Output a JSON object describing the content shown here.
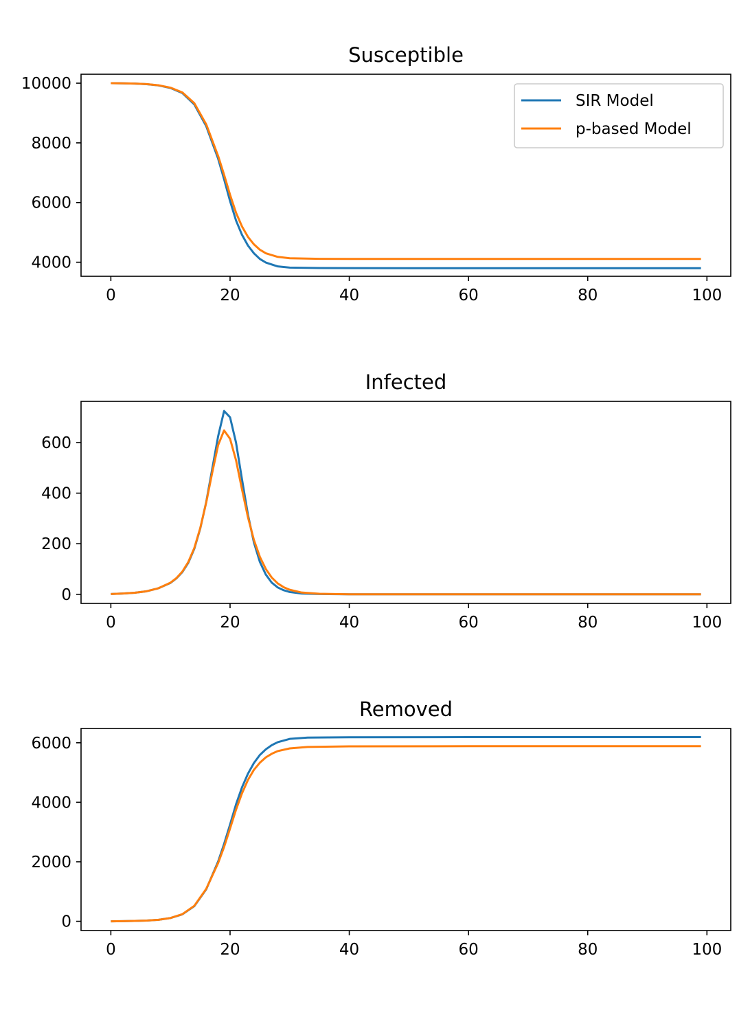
{
  "chart_data": [
    {
      "type": "line",
      "title": "Susceptible",
      "xlim": [
        -5,
        104
      ],
      "ylim": [
        3530,
        10300
      ],
      "xticks": [
        0,
        20,
        40,
        60,
        80,
        100
      ],
      "yticks": [
        4000,
        6000,
        8000,
        10000
      ],
      "legend": {
        "placement": "upper-right"
      },
      "grid": false,
      "series": [
        {
          "name": "SIR Model",
          "color": "#1f77b4",
          "points": [
            [
              0,
              10000
            ],
            [
              2,
              9995
            ],
            [
              4,
              9985
            ],
            [
              6,
              9965
            ],
            [
              8,
              9925
            ],
            [
              10,
              9840
            ],
            [
              12,
              9670
            ],
            [
              14,
              9290
            ],
            [
              16,
              8560
            ],
            [
              18,
              7470
            ],
            [
              19,
              6780
            ],
            [
              20,
              6050
            ],
            [
              21,
              5400
            ],
            [
              22,
              4920
            ],
            [
              23,
              4560
            ],
            [
              24,
              4300
            ],
            [
              25,
              4110
            ],
            [
              26,
              3990
            ],
            [
              28,
              3860
            ],
            [
              30,
              3820
            ],
            [
              35,
              3805
            ],
            [
              40,
              3803
            ],
            [
              50,
              3802
            ],
            [
              70,
              3802
            ],
            [
              99,
              3802
            ]
          ]
        },
        {
          "name": "p-based Model",
          "color": "#ff7f0e",
          "points": [
            [
              0,
              10000
            ],
            [
              2,
              9995
            ],
            [
              4,
              9987
            ],
            [
              6,
              9968
            ],
            [
              8,
              9930
            ],
            [
              10,
              9850
            ],
            [
              12,
              9690
            ],
            [
              14,
              9330
            ],
            [
              16,
              8620
            ],
            [
              18,
              7560
            ],
            [
              19,
              6930
            ],
            [
              20,
              6260
            ],
            [
              21,
              5660
            ],
            [
              22,
              5200
            ],
            [
              23,
              4850
            ],
            [
              24,
              4600
            ],
            [
              25,
              4420
            ],
            [
              26,
              4300
            ],
            [
              28,
              4180
            ],
            [
              30,
              4135
            ],
            [
              35,
              4115
            ],
            [
              40,
              4110
            ],
            [
              50,
              4110
            ],
            [
              70,
              4110
            ],
            [
              99,
              4110
            ]
          ]
        }
      ]
    },
    {
      "type": "line",
      "title": "Infected",
      "xlim": [
        -5,
        104
      ],
      "ylim": [
        -36,
        763
      ],
      "xticks": [
        0,
        20,
        40,
        60,
        80,
        100
      ],
      "yticks": [
        0,
        200,
        400,
        600
      ],
      "grid": false,
      "series": [
        {
          "name": "SIR Model",
          "color": "#1f77b4",
          "points": [
            [
              0,
              1
            ],
            [
              2,
              3
            ],
            [
              4,
              6
            ],
            [
              6,
              12
            ],
            [
              8,
              24
            ],
            [
              10,
              45
            ],
            [
              11,
              63
            ],
            [
              12,
              88
            ],
            [
              13,
              125
            ],
            [
              14,
              180
            ],
            [
              15,
              260
            ],
            [
              16,
              365
            ],
            [
              17,
              495
            ],
            [
              18,
              625
            ],
            [
              19,
              725
            ],
            [
              20,
              700
            ],
            [
              21,
              600
            ],
            [
              22,
              455
            ],
            [
              23,
              315
            ],
            [
              24,
              205
            ],
            [
              25,
              128
            ],
            [
              26,
              78
            ],
            [
              27,
              46
            ],
            [
              28,
              27
            ],
            [
              29,
              16
            ],
            [
              30,
              9
            ],
            [
              32,
              3
            ],
            [
              35,
              1
            ],
            [
              40,
              0
            ],
            [
              99,
              0
            ]
          ]
        },
        {
          "name": "p-based Model",
          "color": "#ff7f0e",
          "points": [
            [
              0,
              1
            ],
            [
              2,
              3
            ],
            [
              4,
              6
            ],
            [
              6,
              12
            ],
            [
              8,
              24
            ],
            [
              10,
              46
            ],
            [
              11,
              64
            ],
            [
              12,
              90
            ],
            [
              13,
              128
            ],
            [
              14,
              183
            ],
            [
              15,
              262
            ],
            [
              16,
              363
            ],
            [
              17,
              480
            ],
            [
              18,
              590
            ],
            [
              19,
              648
            ],
            [
              20,
              615
            ],
            [
              21,
              530
            ],
            [
              22,
              415
            ],
            [
              23,
              305
            ],
            [
              24,
              215
            ],
            [
              25,
              148
            ],
            [
              26,
              100
            ],
            [
              27,
              66
            ],
            [
              28,
              43
            ],
            [
              29,
              28
            ],
            [
              30,
              18
            ],
            [
              32,
              7
            ],
            [
              35,
              2
            ],
            [
              40,
              0
            ],
            [
              99,
              0
            ]
          ]
        }
      ]
    },
    {
      "type": "line",
      "title": "Removed",
      "xlim": [
        -5,
        104
      ],
      "ylim": [
        -310,
        6480
      ],
      "xticks": [
        0,
        20,
        40,
        60,
        80,
        100
      ],
      "yticks": [
        0,
        2000,
        4000,
        6000
      ],
      "grid": false,
      "series": [
        {
          "name": "SIR Model",
          "color": "#1f77b4",
          "points": [
            [
              0,
              0
            ],
            [
              2,
              5
            ],
            [
              4,
              12
            ],
            [
              6,
              25
            ],
            [
              8,
              50
            ],
            [
              10,
              110
            ],
            [
              12,
              235
            ],
            [
              14,
              510
            ],
            [
              16,
              1075
            ],
            [
              18,
              2010
            ],
            [
              19,
              2600
            ],
            [
              20,
              3250
            ],
            [
              21,
              3930
            ],
            [
              22,
              4500
            ],
            [
              23,
              4960
            ],
            [
              24,
              5320
            ],
            [
              25,
              5590
            ],
            [
              26,
              5780
            ],
            [
              27,
              5920
            ],
            [
              28,
              6020
            ],
            [
              30,
              6130
            ],
            [
              33,
              6175
            ],
            [
              40,
              6185
            ],
            [
              60,
              6190
            ],
            [
              99,
              6190
            ]
          ]
        },
        {
          "name": "p-based Model",
          "color": "#ff7f0e",
          "points": [
            [
              0,
              0
            ],
            [
              2,
              5
            ],
            [
              4,
              12
            ],
            [
              6,
              25
            ],
            [
              8,
              50
            ],
            [
              10,
              110
            ],
            [
              12,
              240
            ],
            [
              14,
              520
            ],
            [
              16,
              1090
            ],
            [
              18,
              1960
            ],
            [
              19,
              2500
            ],
            [
              20,
              3120
            ],
            [
              21,
              3750
            ],
            [
              22,
              4300
            ],
            [
              23,
              4750
            ],
            [
              24,
              5090
            ],
            [
              25,
              5330
            ],
            [
              26,
              5510
            ],
            [
              27,
              5630
            ],
            [
              28,
              5720
            ],
            [
              30,
              5810
            ],
            [
              33,
              5860
            ],
            [
              40,
              5880
            ],
            [
              60,
              5885
            ],
            [
              99,
              5885
            ]
          ]
        }
      ]
    }
  ]
}
